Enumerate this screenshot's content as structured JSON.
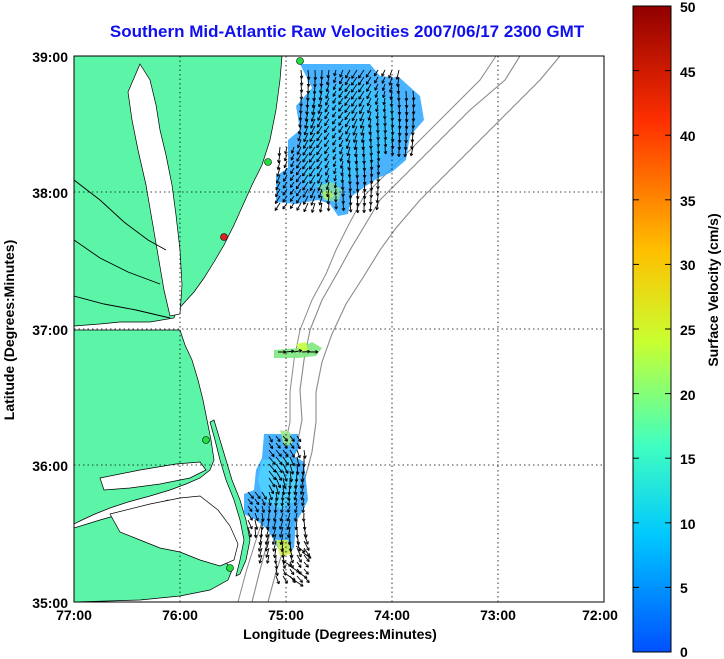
{
  "title": "Southern Mid-Atlantic Raw Velocities 2007/06/17 2300 GMT",
  "x_axis": {
    "label": "Longitude (Degrees:Minutes)",
    "ticks": [
      "77:00",
      "76:00",
      "75:00",
      "74:00",
      "73:00",
      "72:00"
    ]
  },
  "y_axis": {
    "label": "Latitude (Degrees:Minutes)",
    "ticks": [
      "39:00",
      "38:00",
      "37:00",
      "36:00",
      "35:00"
    ]
  },
  "colorbar": {
    "label": "Surface Velocity (cm/s)",
    "ticks": [
      "50",
      "45",
      "40",
      "35",
      "30",
      "25",
      "20",
      "15",
      "10",
      "5",
      "0"
    ],
    "min": 0,
    "max": 50,
    "colors": [
      "#0050ff",
      "#00c8ff",
      "#40ffc0",
      "#c8ff30",
      "#ffc000",
      "#ff3000",
      "#900000"
    ]
  },
  "map": {
    "lon_range": [
      -77,
      -72
    ],
    "lat_range": [
      35,
      39
    ],
    "land_color": "#5cf5a8",
    "water_color": "#ffffff",
    "grid": "dotted"
  }
}
